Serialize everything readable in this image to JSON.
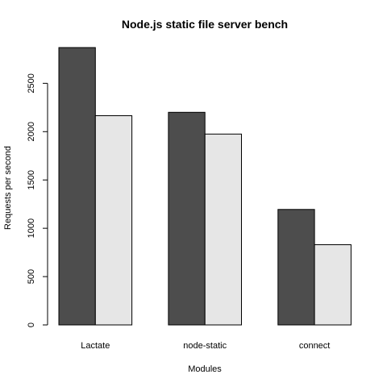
{
  "chart_data": {
    "type": "bar",
    "title": "Node.js static file server bench",
    "xlabel": "Modules",
    "ylabel": "Requests per second",
    "categories": [
      "Lactate",
      "node-static",
      "connect"
    ],
    "series": [
      {
        "values": [
          2870,
          2200,
          1195
        ],
        "color": "#4d4d4d"
      },
      {
        "values": [
          2165,
          1975,
          830
        ],
        "color": "#e6e6e6"
      }
    ],
    "ylim": [
      0,
      2870
    ],
    "yticks": [
      0,
      500,
      1000,
      1500,
      2000,
      2500
    ],
    "grid": false,
    "legend": "none"
  }
}
